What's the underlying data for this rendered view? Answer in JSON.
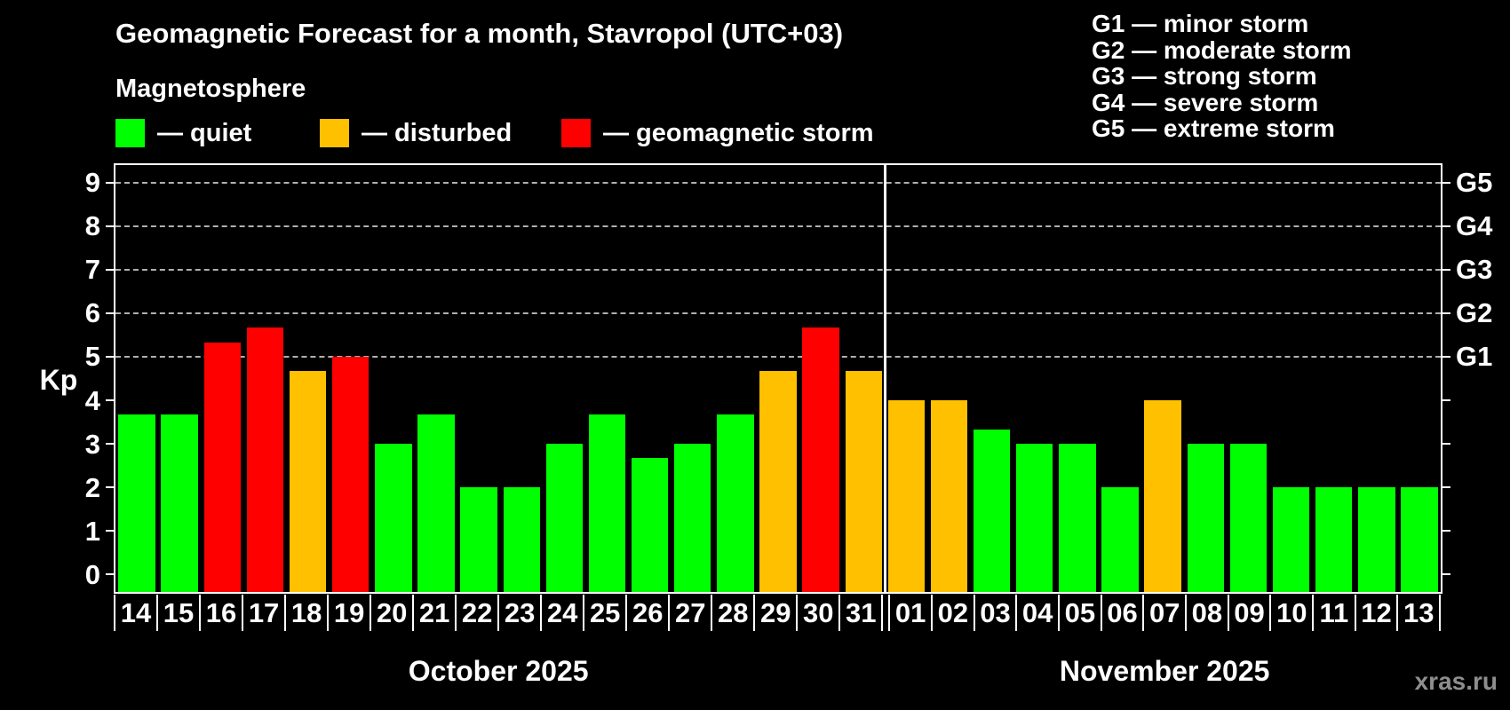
{
  "title": "Geomagnetic Forecast for a month, Stavropol (UTC+03)",
  "subtitle": "Magnetosphere",
  "watermark": "xras.ru",
  "bar_legend": [
    {
      "key": "quiet",
      "label": "— quiet",
      "color": "#00ff00"
    },
    {
      "key": "disturbed",
      "label": "— disturbed",
      "color": "#ffc000"
    },
    {
      "key": "storm",
      "label": "— geomagnetic storm",
      "color": "#ff0000"
    }
  ],
  "storm_scale_legend": [
    {
      "label": "G1 — minor storm"
    },
    {
      "label": "G2 — moderate storm"
    },
    {
      "label": "G3 — strong storm"
    },
    {
      "label": "G4 — severe storm"
    },
    {
      "label": "G5 — extreme storm"
    }
  ],
  "chart_data": {
    "type": "bar",
    "ylabel": "Kp",
    "xlabel": "",
    "ylim": [
      -0.4,
      9.4
    ],
    "yticks": [
      0,
      1,
      2,
      3,
      4,
      5,
      6,
      7,
      8,
      9
    ],
    "gridlines": [
      5,
      6,
      7,
      8,
      9
    ],
    "grid_on": true,
    "legend_position": "top",
    "right_axis": [
      {
        "value": 5,
        "label": "G1"
      },
      {
        "value": 6,
        "label": "G2"
      },
      {
        "value": 7,
        "label": "G3"
      },
      {
        "value": 8,
        "label": "G4"
      },
      {
        "value": 9,
        "label": "G5"
      }
    ],
    "groups": [
      {
        "label": "October 2025",
        "days": [
          {
            "day": "14",
            "kp": 3.67,
            "status": "quiet"
          },
          {
            "day": "15",
            "kp": 3.67,
            "status": "quiet"
          },
          {
            "day": "16",
            "kp": 5.33,
            "status": "storm"
          },
          {
            "day": "17",
            "kp": 5.67,
            "status": "storm"
          },
          {
            "day": "18",
            "kp": 4.67,
            "status": "disturbed"
          },
          {
            "day": "19",
            "kp": 5.0,
            "status": "storm"
          },
          {
            "day": "20",
            "kp": 3.0,
            "status": "quiet"
          },
          {
            "day": "21",
            "kp": 3.67,
            "status": "quiet"
          },
          {
            "day": "22",
            "kp": 2.0,
            "status": "quiet"
          },
          {
            "day": "23",
            "kp": 2.0,
            "status": "quiet"
          },
          {
            "day": "24",
            "kp": 3.0,
            "status": "quiet"
          },
          {
            "day": "25",
            "kp": 3.67,
            "status": "quiet"
          },
          {
            "day": "26",
            "kp": 2.67,
            "status": "quiet"
          },
          {
            "day": "27",
            "kp": 3.0,
            "status": "quiet"
          },
          {
            "day": "28",
            "kp": 3.67,
            "status": "quiet"
          },
          {
            "day": "29",
            "kp": 4.67,
            "status": "disturbed"
          },
          {
            "day": "30",
            "kp": 5.67,
            "status": "storm"
          },
          {
            "day": "31",
            "kp": 4.67,
            "status": "disturbed"
          }
        ]
      },
      {
        "label": "November 2025",
        "days": [
          {
            "day": "01",
            "kp": 4.0,
            "status": "disturbed"
          },
          {
            "day": "02",
            "kp": 4.0,
            "status": "disturbed"
          },
          {
            "day": "03",
            "kp": 3.33,
            "status": "quiet"
          },
          {
            "day": "04",
            "kp": 3.0,
            "status": "quiet"
          },
          {
            "day": "05",
            "kp": 3.0,
            "status": "quiet"
          },
          {
            "day": "06",
            "kp": 2.0,
            "status": "quiet"
          },
          {
            "day": "07",
            "kp": 4.0,
            "status": "disturbed"
          },
          {
            "day": "08",
            "kp": 3.0,
            "status": "quiet"
          },
          {
            "day": "09",
            "kp": 3.0,
            "status": "quiet"
          },
          {
            "day": "10",
            "kp": 2.0,
            "status": "quiet"
          },
          {
            "day": "11",
            "kp": 2.0,
            "status": "quiet"
          },
          {
            "day": "12",
            "kp": 2.0,
            "status": "quiet"
          },
          {
            "day": "13",
            "kp": 2.0,
            "status": "quiet"
          }
        ]
      }
    ]
  }
}
